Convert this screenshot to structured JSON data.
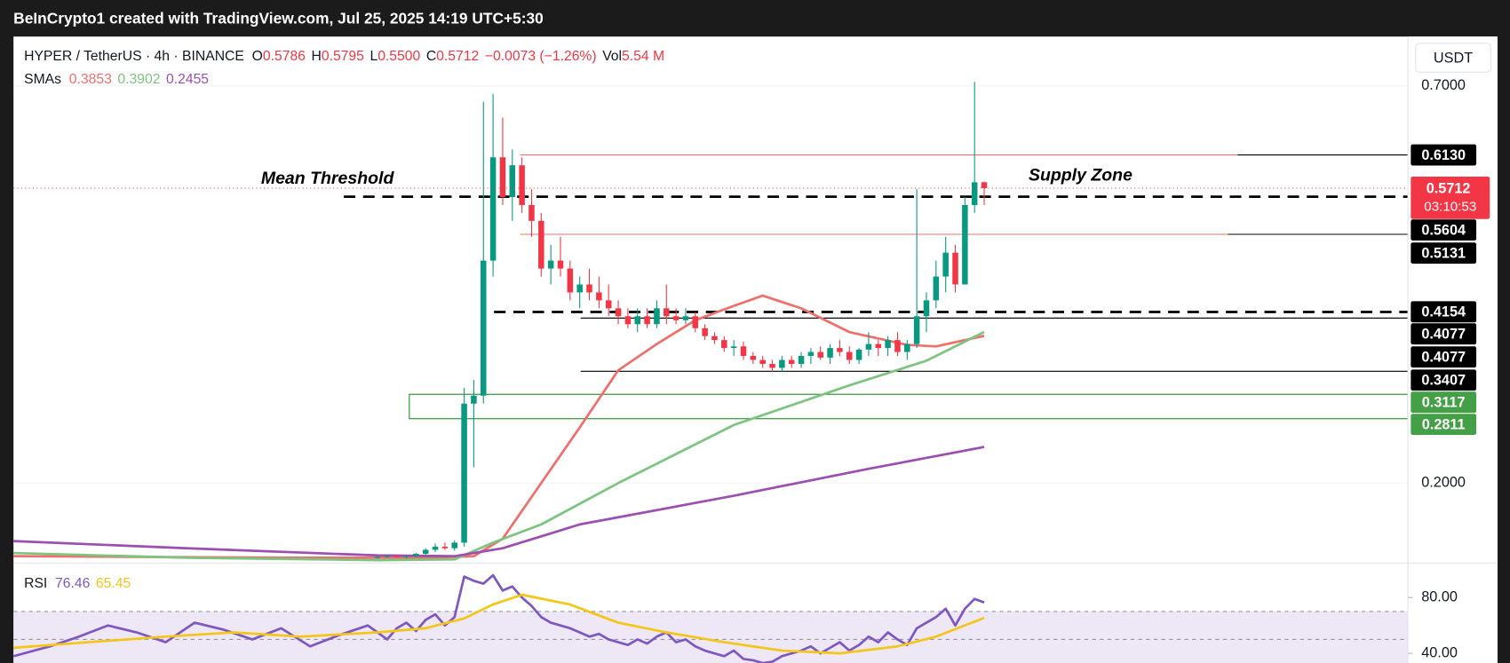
{
  "header": {
    "text": "BeInCrypto1 created with TradingView.com, Jul 25, 2025 14:19 UTC+5:30"
  },
  "legend": {
    "symbol": "HYPER / TetherUS · 4h · BINANCE",
    "ohlc": [
      {
        "label": "O",
        "value": "0.5786"
      },
      {
        "label": "H",
        "value": "0.5795"
      },
      {
        "label": "L",
        "value": "0.5500"
      },
      {
        "label": "C",
        "value": "0.5712"
      }
    ],
    "change": "−0.0073 (−1.26%)",
    "vol_label": "Vol",
    "vol": "5.54 M",
    "smas_label": "SMAs"
  },
  "currency": "USDT",
  "chart_data": [
    {
      "type": "candlestick",
      "up_color": "#089981",
      "down_color": "#f23645",
      "xlim": [
        -37.8,
        107
      ],
      "ylim": [
        0.0995,
        0.762
      ],
      "yticks": [
        {
          "value": 0.7,
          "label": "0.7000"
        },
        {
          "value": 0.2,
          "label": "0.2000"
        }
      ],
      "open": [
        0.106,
        0.107,
        0.108,
        0.107,
        0.108,
        0.111,
        0.116,
        0.12,
        0.118,
        0.125,
        0.3,
        0.31,
        0.48,
        0.61,
        0.56,
        0.6,
        0.55,
        0.53,
        0.47,
        0.48,
        0.47,
        0.44,
        0.45,
        0.44,
        0.43,
        0.42,
        0.41,
        0.4,
        0.41,
        0.4,
        0.42,
        0.41,
        0.405,
        0.41,
        0.395,
        0.385,
        0.38,
        0.37,
        0.372,
        0.36,
        0.355,
        0.35,
        0.345,
        0.355,
        0.35,
        0.36,
        0.365,
        0.358,
        0.37,
        0.365,
        0.355,
        0.368,
        0.375,
        0.37,
        0.38,
        0.365,
        0.375,
        0.41,
        0.43,
        0.46,
        0.49,
        0.45,
        0.55,
        0.5786
      ],
      "high": [
        0.109,
        0.11,
        0.11,
        0.109,
        0.112,
        0.118,
        0.124,
        0.125,
        0.128,
        0.32,
        0.33,
        0.68,
        0.69,
        0.66,
        0.62,
        0.61,
        0.57,
        0.54,
        0.5,
        0.51,
        0.48,
        0.46,
        0.47,
        0.46,
        0.45,
        0.43,
        0.42,
        0.42,
        0.42,
        0.43,
        0.45,
        0.42,
        0.42,
        0.415,
        0.4,
        0.39,
        0.385,
        0.38,
        0.378,
        0.365,
        0.36,
        0.355,
        0.36,
        0.36,
        0.365,
        0.37,
        0.372,
        0.375,
        0.38,
        0.372,
        0.37,
        0.39,
        0.38,
        0.385,
        0.39,
        0.38,
        0.57,
        0.44,
        0.48,
        0.51,
        0.5,
        0.56,
        0.705,
        0.5795
      ],
      "low": [
        0.105,
        0.106,
        0.106,
        0.105,
        0.107,
        0.109,
        0.113,
        0.116,
        0.115,
        0.12,
        0.22,
        0.3,
        0.46,
        0.55,
        0.53,
        0.54,
        0.51,
        0.46,
        0.45,
        0.46,
        0.43,
        0.42,
        0.43,
        0.42,
        0.41,
        0.4,
        0.395,
        0.39,
        0.395,
        0.395,
        0.4,
        0.4,
        0.4,
        0.39,
        0.38,
        0.375,
        0.365,
        0.36,
        0.355,
        0.35,
        0.345,
        0.34,
        0.34,
        0.345,
        0.345,
        0.35,
        0.355,
        0.35,
        0.36,
        0.35,
        0.35,
        0.36,
        0.36,
        0.36,
        0.36,
        0.355,
        0.37,
        0.39,
        0.42,
        0.44,
        0.44,
        0.45,
        0.54,
        0.55
      ],
      "close": [
        0.107,
        0.108,
        0.107,
        0.108,
        0.111,
        0.116,
        0.12,
        0.118,
        0.125,
        0.3,
        0.31,
        0.48,
        0.61,
        0.56,
        0.6,
        0.55,
        0.53,
        0.47,
        0.48,
        0.47,
        0.44,
        0.45,
        0.44,
        0.43,
        0.42,
        0.41,
        0.4,
        0.41,
        0.4,
        0.42,
        0.41,
        0.405,
        0.41,
        0.395,
        0.385,
        0.38,
        0.37,
        0.372,
        0.36,
        0.355,
        0.35,
        0.345,
        0.355,
        0.35,
        0.36,
        0.365,
        0.358,
        0.37,
        0.365,
        0.355,
        0.368,
        0.375,
        0.37,
        0.38,
        0.365,
        0.375,
        0.41,
        0.43,
        0.46,
        0.49,
        0.45,
        0.55,
        0.5786,
        0.5712
      ],
      "series": [
        {
          "name": "0.3853",
          "color": "#ef6f6c",
          "x": [
            -37.8,
            -10,
            5,
            10,
            13,
            17,
            21,
            25,
            29,
            33,
            37,
            40,
            44,
            49,
            55,
            58,
            63
          ],
          "values": [
            0.108,
            0.106,
            0.106,
            0.108,
            0.13,
            0.2,
            0.27,
            0.342,
            0.375,
            0.405,
            0.423,
            0.436,
            0.42,
            0.39,
            0.374,
            0.372,
            0.3853
          ]
        },
        {
          "name": "0.3902",
          "color": "#7cc47f",
          "x": [
            -37.8,
            -20,
            0,
            8,
            12,
            17,
            25,
            37,
            49,
            57,
            63
          ],
          "values": [
            0.112,
            0.106,
            0.103,
            0.104,
            0.125,
            0.148,
            0.2,
            0.273,
            0.323,
            0.354,
            0.3902
          ]
        },
        {
          "name": "0.2455",
          "color": "#9c4fb0",
          "x": [
            -37.8,
            -20,
            0,
            8,
            13,
            21,
            37,
            51,
            63
          ],
          "values": [
            0.127,
            0.118,
            0.109,
            0.108,
            0.118,
            0.148,
            0.184,
            0.218,
            0.2455
          ]
        }
      ],
      "levels": [
        {
          "value": 0.613,
          "label": "0.6130",
          "style": "solid",
          "color": "#e57373"
        },
        {
          "value": 0.5604,
          "label": "0.5604",
          "style": "dashed",
          "color": "#000000"
        },
        {
          "value": 0.5131,
          "label": "0.5131",
          "style": "solid",
          "color": "#e57373"
        },
        {
          "value": 0.4154,
          "label": "0.4154",
          "style": "dashed",
          "color": "#000000"
        },
        {
          "value": 0.4077,
          "label": "0.4077",
          "style": "solid",
          "color": "#000000"
        },
        {
          "value": 0.4077,
          "label": "0.4077",
          "style": "solid",
          "color": "#000000"
        },
        {
          "value": 0.3407,
          "label": "0.3407",
          "style": "solid",
          "color": "#000000"
        }
      ],
      "last_price": {
        "value": 0.5712,
        "label": "0.5712",
        "countdown": "03:10:53",
        "color": "#f23645"
      },
      "zone": {
        "color": "#43a047",
        "top": {
          "value": 0.3117,
          "label": "0.3117"
        },
        "bottom": {
          "value": 0.2811,
          "label": "0.2811"
        }
      },
      "annotations": [
        {
          "text": "Mean Threshold"
        },
        {
          "text": "Supply Zone"
        }
      ]
    },
    {
      "type": "line",
      "title": "RSI",
      "xlim": [
        -37.8,
        107
      ],
      "ylim": [
        33.1,
        104.8
      ],
      "yticks": [
        {
          "value": 80,
          "label": "80.00"
        },
        {
          "value": 40,
          "label": "40.00"
        }
      ],
      "band": [
        30,
        70
      ],
      "band_color": "#ede7f6",
      "midline": 50,
      "series": [
        {
          "name": "76.46",
          "color": "#7e57c2",
          "x": [
            -37.8,
            -34,
            -31,
            -28,
            -25,
            -22,
            -19,
            -16,
            -13,
            -10,
            -7,
            -4,
            -1,
            0,
            1,
            2,
            3,
            4,
            5,
            6,
            7,
            8,
            9,
            10,
            11,
            12,
            13,
            14,
            15,
            16,
            17,
            18,
            19,
            20,
            21,
            22,
            23,
            24,
            25,
            26,
            27,
            28,
            29,
            30,
            31,
            32,
            33,
            34,
            35,
            36,
            37,
            38,
            39,
            40,
            41,
            42,
            43,
            44,
            45,
            46,
            47,
            48,
            49,
            50,
            51,
            52,
            53,
            54,
            55,
            56,
            57,
            58,
            59,
            60,
            61,
            62,
            63
          ],
          "values": [
            38,
            45,
            52,
            60,
            55,
            48,
            62,
            57,
            50,
            58,
            45,
            53,
            60,
            55,
            50,
            58,
            62,
            56,
            64,
            68,
            60,
            66,
            95,
            92,
            90,
            96,
            85,
            88,
            80,
            74,
            66,
            62,
            60,
            58,
            55,
            52,
            54,
            50,
            48,
            46,
            50,
            47,
            52,
            55,
            48,
            50,
            45,
            42,
            40,
            38,
            42,
            36,
            35,
            33,
            34,
            38,
            40,
            42,
            45,
            40,
            44,
            48,
            42,
            46,
            52,
            48,
            55,
            50,
            46,
            58,
            62,
            66,
            72,
            60,
            72,
            79,
            76.46
          ]
        },
        {
          "name": "65.45",
          "color": "#f5c518",
          "x": [
            -37.8,
            -30,
            -22,
            -15,
            -8,
            0,
            5,
            9,
            12,
            15,
            20,
            25,
            30,
            36,
            42,
            48,
            54,
            58,
            63
          ],
          "values": [
            44,
            48,
            52,
            55,
            52,
            55,
            58,
            65,
            75,
            82,
            75,
            62,
            55,
            48,
            42,
            40,
            45,
            52,
            65.45
          ]
        }
      ]
    }
  ]
}
